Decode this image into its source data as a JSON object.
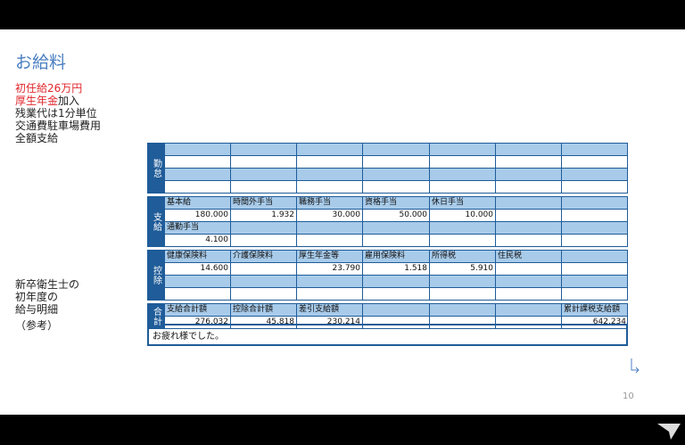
{
  "title": "お給料",
  "notes": {
    "line1": "初任給26万円",
    "line2_red": "厚生年金",
    "line2_rest": "加入",
    "line3": "残業代は1分単位",
    "line4": "交通費駐車場費用",
    "line5": "全額支給"
  },
  "caption": [
    "新卒衛生士の",
    "初年度の",
    "給与明細",
    "（参考）"
  ],
  "table": {
    "sections": [
      {
        "label": "勤怠",
        "rows": [
          [
            null,
            null,
            null,
            null,
            null,
            null,
            null
          ],
          [
            null,
            null,
            null,
            null,
            null,
            null,
            null
          ],
          [
            null,
            null,
            null,
            null,
            null,
            null,
            null
          ],
          [
            null,
            null,
            null,
            null,
            null,
            null,
            null
          ]
        ]
      },
      {
        "label": "支給",
        "rows": [
          [
            "基本給",
            "時間外手当",
            "職務手当",
            "資格手当",
            "休日手当",
            null,
            null
          ],
          [
            "180.000",
            "1.932",
            "30.000",
            "50.000",
            "10.000",
            null,
            null
          ],
          [
            "通勤手当",
            null,
            null,
            null,
            null,
            null,
            null
          ],
          [
            "4.100",
            null,
            null,
            null,
            null,
            null,
            null
          ]
        ]
      },
      {
        "label": "控除",
        "rows": [
          [
            "健康保険料",
            "介護保険料",
            "厚生年金等",
            "雇用保険料",
            "所得税",
            "住民税",
            null
          ],
          [
            "14.600",
            null,
            "23.790",
            "1.518",
            "5.910",
            null,
            null
          ],
          [
            null,
            null,
            null,
            null,
            null,
            null,
            null
          ],
          [
            null,
            null,
            null,
            null,
            null,
            null,
            null
          ]
        ]
      },
      {
        "label": "合計",
        "rows": [
          [
            "支給合計額",
            "控除合計額",
            "差引支給額",
            null,
            null,
            null,
            "累計課税支給額"
          ],
          [
            "276.032",
            "45.818",
            "230.214",
            null,
            null,
            null,
            "642.234"
          ]
        ]
      }
    ],
    "message": "お疲れ様でした。"
  },
  "page_number": "10"
}
